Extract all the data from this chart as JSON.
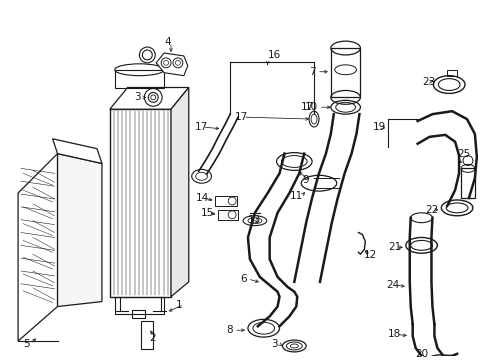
{
  "background_color": "#ffffff",
  "figsize": [
    4.89,
    3.6
  ],
  "dpi": 100,
  "line_color": "#1a1a1a",
  "label_color": "#1a1a1a",
  "label_fontsize": 7.5
}
